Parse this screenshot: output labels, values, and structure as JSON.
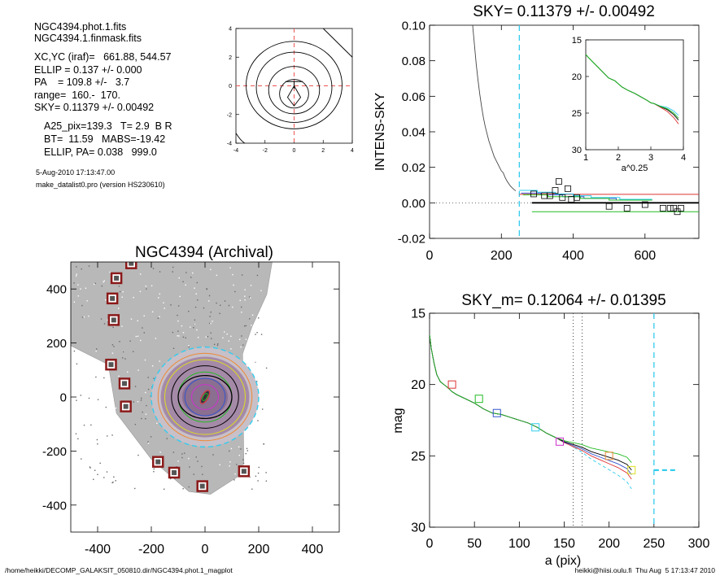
{
  "info": {
    "line1": "NGC4394.phot.1.fits",
    "line2": "NGC4394.1.finmask.fits",
    "line3": "XC,YC (iraf)=   661.88, 544.57",
    "line4": "ELLIP = 0.137 +/- 0.000",
    "line5": "PA    = 109.8 +/-   3.7",
    "line6": "range=  160.-  170.",
    "line7": "SKY= 0.11379 +/- 0.00492",
    "line8": "A25_pix=139.3   T= 2.9  B R",
    "line9": "BT=  11.59   MABS=-19.42",
    "line10": "ELLIP, PA= 0.038   999.0",
    "date": "5-Aug-2010 17:13:47.00",
    "program": "make_datalist0.pro (version HS230610)"
  },
  "footer": {
    "left": "/home/heikki/DECOMP_GALAKSIT_050810.dir/NGC4394.phot.1_magplot",
    "right": "heikki@hiisi.oulu.fi  Thu Aug  5 17:13:47 2010"
  },
  "colors": {
    "cyan": "#33ccee",
    "red_dash": "#ee5555",
    "green": "#22bb22",
    "blue": "#3355cc",
    "red": "#dd3333",
    "gray": "#888888"
  },
  "chart_data": [
    {
      "id": "contour-inset",
      "type": "contour",
      "title": "",
      "xlabel": "",
      "ylabel": "",
      "xlim": [
        -4,
        4
      ],
      "ylim": [
        -4,
        4
      ],
      "x_ticks": [
        "-4",
        "-2",
        "0",
        "2",
        "4"
      ],
      "y_ticks": [
        "-4",
        "-2",
        "0",
        "2",
        "4"
      ],
      "center": [
        0,
        0
      ]
    },
    {
      "id": "sky-profile",
      "type": "line",
      "title": "SKY= 0.11379 +/- 0.00492",
      "xlabel": "",
      "ylabel": "INTENS-SKY",
      "xlim": [
        0,
        750
      ],
      "ylim": [
        -0.02,
        0.1
      ],
      "x_ticks": [
        "0",
        "200",
        "400",
        "600"
      ],
      "y_ticks": [
        "-0.02",
        "0.00",
        "0.02",
        "0.04",
        "0.06",
        "0.08",
        "0.10"
      ],
      "sky_cut_x": 250,
      "intensity": {
        "x": [
          120,
          125,
          130,
          135,
          140,
          145,
          150,
          155,
          160,
          165,
          170,
          175,
          180,
          185,
          190,
          195,
          200,
          205,
          210,
          215,
          220,
          225,
          230,
          235,
          240
        ],
        "y": [
          0.1,
          0.089,
          0.078,
          0.069,
          0.061,
          0.054,
          0.048,
          0.043,
          0.039,
          0.035,
          0.032,
          0.029,
          0.026,
          0.024,
          0.022,
          0.02,
          0.018,
          0.017,
          0.0145,
          0.0125,
          0.011,
          0.0095,
          0.0085,
          0.0075,
          0.0068
        ]
      },
      "sky_points": {
        "x": [
          290,
          320,
          335,
          350,
          360,
          370,
          385,
          395,
          410,
          500,
          550,
          600,
          650,
          670,
          680,
          690,
          700
        ],
        "y": [
          0.005,
          0.004,
          0.004,
          0.007,
          0.012,
          0.003,
          0.008,
          0.002,
          0.003,
          -0.002,
          -0.003,
          -0.001,
          -0.003,
          -0.003,
          -0.003,
          -0.005,
          -0.003
        ]
      },
      "hlines": [
        {
          "y": 0.0048,
          "x": [
            250,
            750
          ],
          "color": "#dd3333"
        },
        {
          "y": 0.0,
          "x": [
            285,
            750
          ],
          "color": "#000000"
        },
        {
          "y": -0.005,
          "x": [
            285,
            750
          ],
          "color": "#22bb22"
        }
      ],
      "inset": {
        "xlabel": "a^0.25",
        "xlim": [
          1,
          4
        ],
        "ylim": [
          30,
          15
        ],
        "x_ticks": [
          "1",
          "2",
          "3",
          "4"
        ],
        "y_ticks": [
          "15",
          "20",
          "25",
          "30"
        ],
        "profile": {
          "x": [
            1.0,
            1.1,
            1.3,
            1.5,
            1.7,
            1.9,
            2.1,
            2.3,
            2.5,
            2.7,
            2.9,
            3.0,
            3.1,
            3.3,
            3.5,
            3.7,
            3.85
          ],
          "y": [
            17.0,
            17.5,
            18.4,
            19.3,
            20.2,
            20.6,
            21.4,
            21.9,
            22.3,
            22.8,
            23.3,
            23.6,
            23.7,
            24.1,
            24.4,
            25.0,
            25.7
          ]
        }
      }
    },
    {
      "id": "galaxy-image",
      "type": "image",
      "title": "NGC4394 (Archival)",
      "xlabel": "",
      "ylabel": "",
      "xlim": [
        -500,
        500
      ],
      "ylim": [
        -500,
        500
      ],
      "x_ticks": [
        "-400",
        "-200",
        "0",
        "200",
        "400"
      ],
      "y_ticks": [
        "400",
        "200",
        "0",
        "-200",
        "-400"
      ],
      "markers": {
        "x": [
          -275,
          -330,
          -345,
          -340,
          -350,
          -300,
          -295,
          -175,
          -115,
          145,
          -10
        ],
        "y": [
          495,
          440,
          365,
          285,
          120,
          50,
          -35,
          -240,
          -280,
          -275,
          -330
        ]
      },
      "ellipses_a": [
        200,
        175,
        150,
        125,
        100,
        75,
        50
      ]
    },
    {
      "id": "mag-profile",
      "type": "line",
      "title": "SKY_m=  0.12064 +/- 0.01395",
      "xlabel": "a (pix)",
      "ylabel": "mag",
      "xlim": [
        0,
        300
      ],
      "ylim": [
        30,
        15
      ],
      "x_ticks": [
        "0",
        "50",
        "100",
        "150",
        "200",
        "250",
        "300"
      ],
      "y_ticks": [
        "15",
        "20",
        "25",
        "30"
      ],
      "vlines_dotted": [
        160,
        170
      ],
      "sky_cut_x": 250,
      "profile": {
        "x": [
          0,
          2,
          5,
          8,
          12,
          16,
          20,
          25,
          30,
          40,
          50,
          60,
          70,
          80,
          90,
          100,
          110,
          120,
          130,
          140,
          150,
          160,
          170,
          180,
          190,
          200,
          210,
          220,
          225
        ],
        "y": [
          16.5,
          17.5,
          18.5,
          19.3,
          19.8,
          20.0,
          20.2,
          20.5,
          20.7,
          21.0,
          21.3,
          21.7,
          22.0,
          22.1,
          22.3,
          22.5,
          22.7,
          23.0,
          23.4,
          23.7,
          24.0,
          24.2,
          24.4,
          24.7,
          24.9,
          25.1,
          25.3,
          25.6,
          26.0
        ]
      },
      "markers": {
        "x": [
          25,
          55,
          75,
          118,
          145,
          200,
          225
        ],
        "y": [
          20.0,
          21.0,
          22.0,
          23.0,
          24.0,
          25.0,
          26.0
        ],
        "colors": [
          "#dd3333",
          "#22bb22",
          "#3355cc",
          "#33ccee",
          "#cc33cc",
          "#ee8833",
          "#dddd22"
        ]
      },
      "sky_mark": {
        "x": [
          250,
          275
        ],
        "y": 26.0
      }
    }
  ]
}
